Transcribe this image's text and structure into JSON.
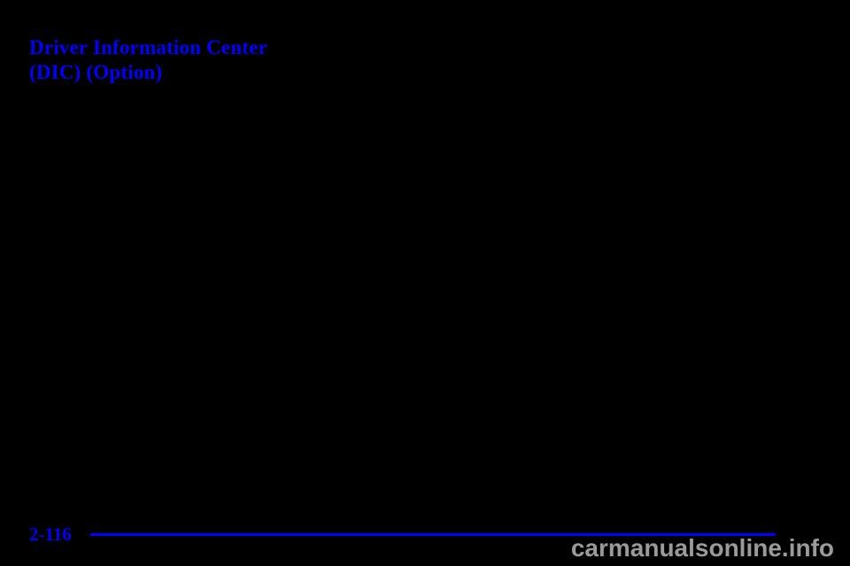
{
  "page": {
    "background_color": "#000000",
    "accent_color": "#0101ff"
  },
  "heading": {
    "line1": "Driver Information Center",
    "line2": "(DIC) (Option)",
    "color": "#0101ff"
  },
  "footer": {
    "page_number": "2-116",
    "rule_color": "#0101ff"
  },
  "watermark": {
    "text": "carmanualsonline.info",
    "color": "#9a9a9a"
  }
}
